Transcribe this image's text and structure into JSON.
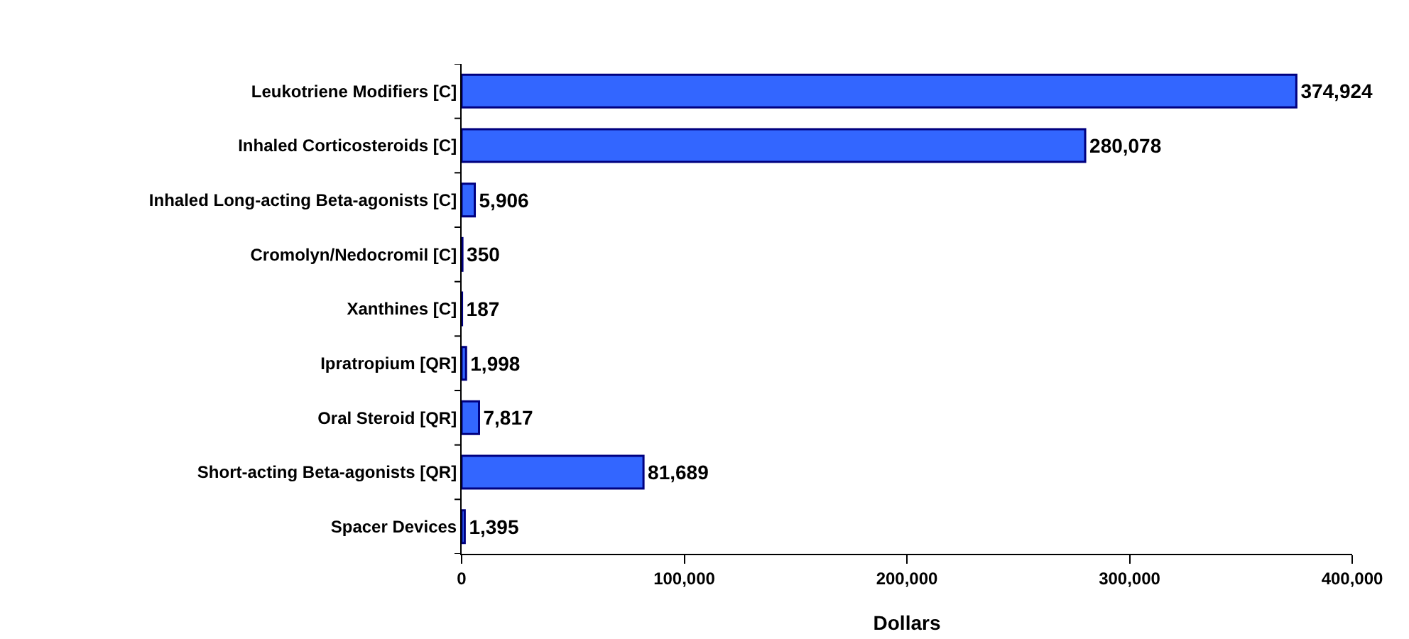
{
  "chart_data": {
    "type": "bar",
    "orientation": "horizontal",
    "xlabel": "Dollars",
    "categories": [
      "Leukotriene Modifiers [C]",
      "Inhaled Corticosteroids [C]",
      "Inhaled Long-acting Beta-agonists [C]",
      "Cromolyn/Nedocromil [C]",
      "Xanthines [C]",
      "Ipratropium [QR]",
      "Oral Steroid [QR]",
      "Short-acting Beta-agonists [QR]",
      "Spacer Devices"
    ],
    "values": [
      374924,
      280078,
      5906,
      350,
      187,
      1998,
      7817,
      81689,
      1395
    ],
    "color": "#3366ff",
    "xlim": [
      0,
      400000
    ],
    "xticks": [
      {
        "value": 0,
        "label": "0"
      },
      {
        "value": 100000,
        "label": "100,000"
      },
      {
        "value": 200000,
        "label": "200,000"
      },
      {
        "value": 300000,
        "label": "300,000"
      },
      {
        "value": 400000,
        "label": "400,000"
      }
    ],
    "value_labels": [
      "374,924",
      "280,078",
      "5,906",
      "350",
      "187",
      "1,998",
      "7,817",
      "81,689",
      "1,395"
    ],
    "grid": false,
    "legend": false
  }
}
